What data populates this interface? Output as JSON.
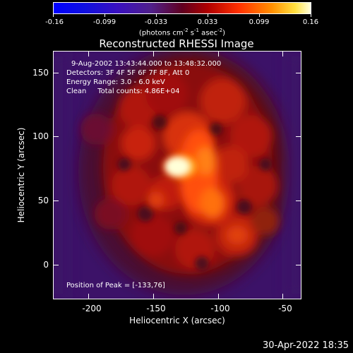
{
  "colorbar": {
    "tick_labels": [
      "-0.16",
      "-0.099",
      "-0.033",
      "0.033",
      "0.099",
      "0.16"
    ],
    "units_prefix": "(photons cm",
    "units_exp1": "-2",
    "units_mid": " s",
    "units_exp2": "-1",
    "units_mid2": " asec",
    "units_exp3": "-2",
    "units_suffix": ")"
  },
  "title": "Reconstructed RHESSI Image",
  "annotations": {
    "time_range": "9-Aug-2002 13:43:44.000 to 13:48:32.000",
    "detectors": "Detectors: 3F 4F 5F 6F 7F 8F, Att 0",
    "energy_range": "Energy Range: 3.0 - 6.0 keV",
    "clean": "Clean     Total counts: 4.86E+04",
    "peak": "Position of Peak = [-133,76]"
  },
  "axes": {
    "x_title": "Heliocentric X (arcsec)",
    "y_title": "Heliocentric Y (arcsec)",
    "x_ticks": [
      "-200",
      "-150",
      "-100",
      "-50"
    ],
    "y_ticks": [
      "150",
      "100",
      "50",
      "0"
    ]
  },
  "timestamp": "30-Apr-2022 18:35"
}
